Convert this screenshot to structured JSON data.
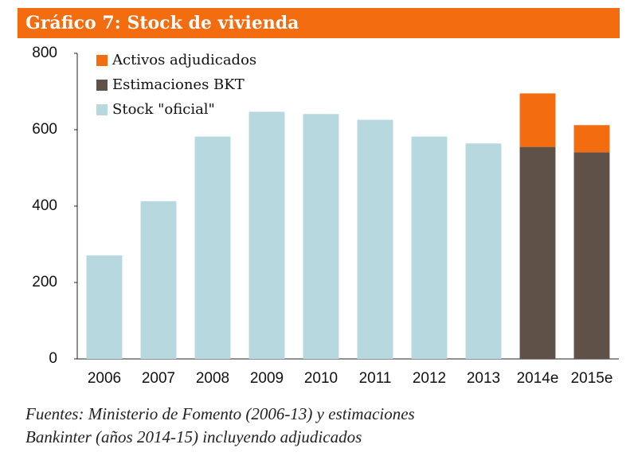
{
  "chart_data": {
    "type": "stacked-bar",
    "title": "Gráfico 7: Stock de vivienda",
    "categories": [
      "2006",
      "2007",
      "2008",
      "2009",
      "2010",
      "2011",
      "2012",
      "2013",
      "2014e",
      "2015e"
    ],
    "series": [
      {
        "name": "Stock \"oficial\"",
        "color": "#b7d8df",
        "values": [
          271,
          413,
          582,
          647,
          641,
          626,
          582,
          564,
          null,
          null
        ]
      },
      {
        "name": "Estimaciones BKT",
        "color": "#5f5048",
        "values": [
          null,
          null,
          null,
          null,
          null,
          null,
          null,
          null,
          555,
          541
        ]
      },
      {
        "name": "Activos adjudicados",
        "color": "#f36c10",
        "values": [
          null,
          null,
          null,
          null,
          null,
          null,
          null,
          null,
          140,
          71
        ]
      }
    ],
    "ylim": [
      0,
      800
    ],
    "yticks": [
      0,
      200,
      400,
      600,
      800
    ],
    "source": [
      "Fuentes: Ministerio de Fomento (2006-13) y estimaciones",
      "Bankinter (años 2014-15) incluyendo adjudicados"
    ]
  }
}
